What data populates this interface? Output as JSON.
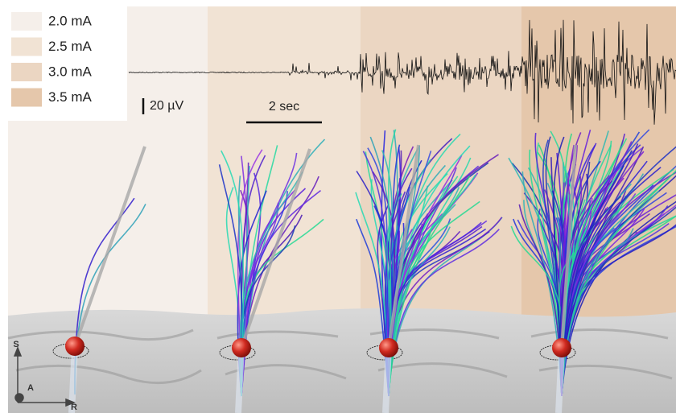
{
  "legend": {
    "items": [
      {
        "label": "2.0 mA",
        "color": "#f5efea"
      },
      {
        "label": "2.5 mA",
        "color": "#f1e3d4"
      },
      {
        "label": "3.0 mA",
        "color": "#ebd6c2"
      },
      {
        "label": "3.5 mA",
        "color": "#e5c7ab"
      }
    ]
  },
  "scale_bars": {
    "voltage": "20 µV",
    "time": "2 sec"
  },
  "orientation": {
    "superior": "S",
    "anterior": "A",
    "right": "R"
  }
}
